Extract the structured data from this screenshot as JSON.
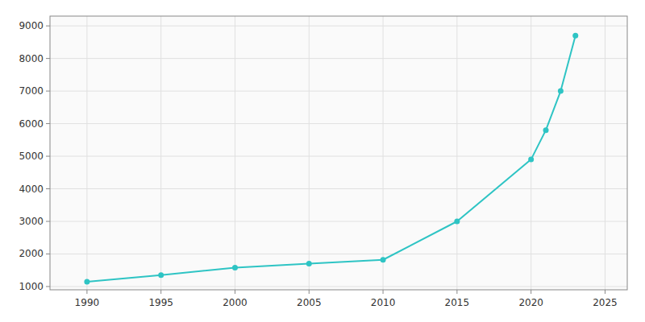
{
  "chart_data": {
    "type": "line",
    "x": [
      1990,
      1995,
      2000,
      2005,
      2010,
      2015,
      2020,
      2021,
      2022,
      2023
    ],
    "values": [
      1150,
      1350,
      1580,
      1700,
      1820,
      3000,
      4900,
      5800,
      7000,
      8700
    ],
    "color": "#2EC4C4",
    "marker": "circle",
    "xlim": [
      1987.5,
      2026.5
    ],
    "ylim": [
      900,
      9300
    ],
    "xticks": [
      1990,
      1995,
      2000,
      2005,
      2010,
      2015,
      2020,
      2025
    ],
    "yticks": [
      1000,
      2000,
      3000,
      4000,
      5000,
      6000,
      7000,
      8000,
      9000
    ],
    "grid": true
  }
}
